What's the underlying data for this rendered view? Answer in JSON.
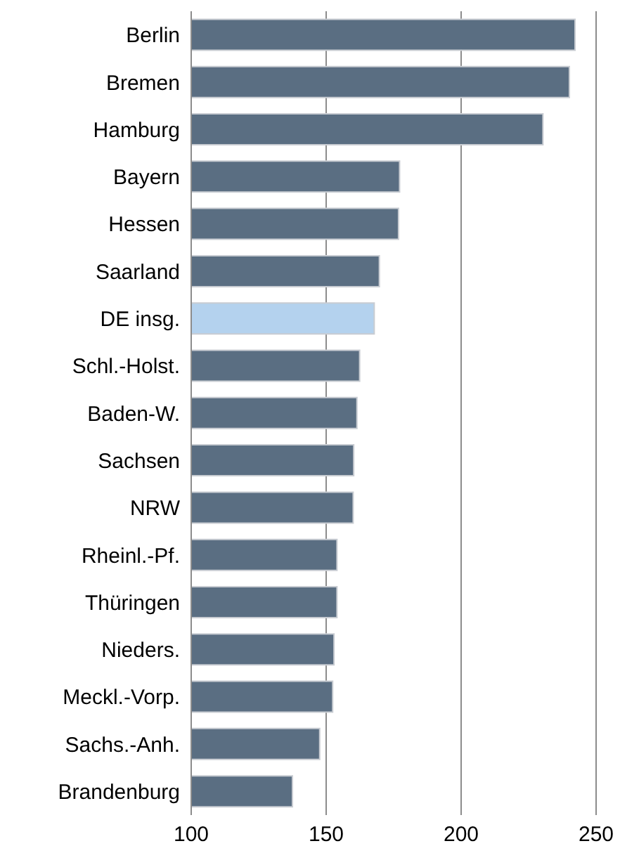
{
  "chart_data": {
    "type": "bar",
    "orientation": "horizontal",
    "categories": [
      "Berlin",
      "Bremen",
      "Hamburg",
      "Bayern",
      "Hessen",
      "Saarland",
      "DE insg.",
      "Schl.-Holst.",
      "Baden-W.",
      "Sachsen",
      "NRW",
      "Rheinl.-Pf.",
      "Thüringen",
      "Nieders.",
      "Meckl.-Vorp.",
      "Sachs.-Anh.",
      "Brandenburg"
    ],
    "values": [
      242.2,
      240.1,
      230.3,
      177.2,
      176.8,
      169.7,
      167.8,
      162.4,
      161.4,
      160.2,
      160.0,
      154.0,
      154.0,
      152.9,
      152.4,
      147.6,
      137.5
    ],
    "colors": [
      "#5a6e82",
      "#5a6e82",
      "#5a6e82",
      "#5a6e82",
      "#5a6e82",
      "#5a6e82",
      "#b4d2ee",
      "#5a6e82",
      "#5a6e82",
      "#5a6e82",
      "#5a6e82",
      "#5a6e82",
      "#5a6e82",
      "#5a6e82",
      "#5a6e82",
      "#5a6e82",
      "#5a6e82"
    ],
    "xlim": [
      100,
      250
    ],
    "xticks": [
      100,
      150,
      200,
      250
    ],
    "grid": "x",
    "legend": false
  }
}
